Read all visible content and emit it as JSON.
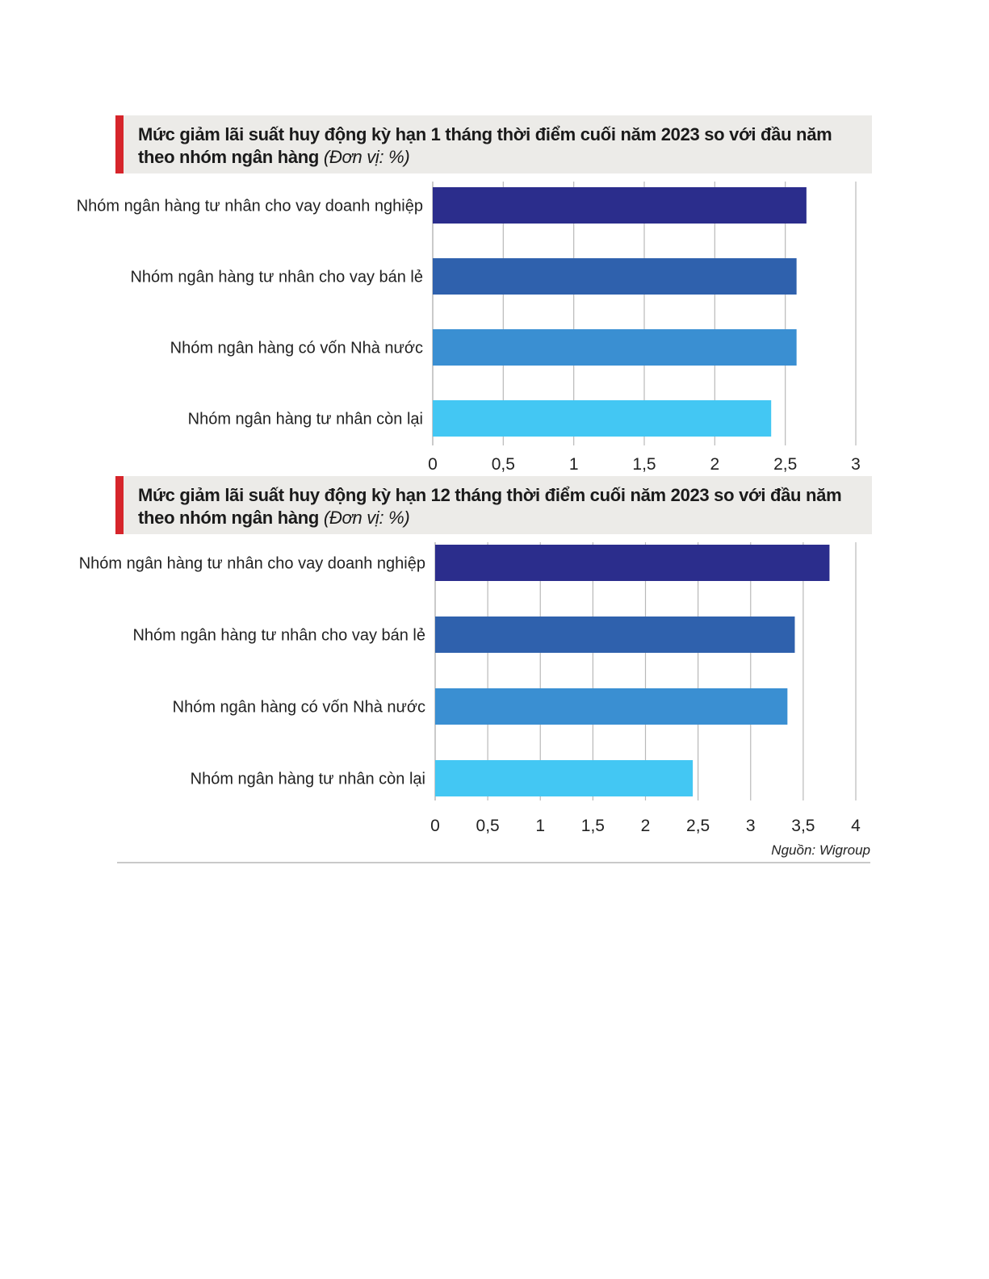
{
  "charts": [
    {
      "title": "Mức giảm lãi suất huy động kỳ hạn 1 tháng thời điểm cuối năm 2023 so với đầu năm theo nhóm ngân hàng",
      "unit": "(Đơn vị: %)"
    },
    {
      "title": "Mức giảm lãi suất huy động kỳ hạn 12 tháng thời điểm cuối năm 2023 so với đầu năm theo nhóm ngân hàng",
      "unit": "(Đơn vị: %)"
    }
  ],
  "source": "Nguồn: Wigroup",
  "colors": {
    "accent": "#d6252b",
    "title_bg": "#ecebe8",
    "bars": [
      "#2b2d8c",
      "#2f61ad",
      "#3a8fd2",
      "#43c7f3"
    ],
    "grid": "#b9b9b9"
  },
  "chart_data": [
    {
      "type": "bar",
      "orientation": "horizontal",
      "categories": [
        "Nhóm ngân hàng tư nhân cho vay doanh nghiệp",
        "Nhóm ngân hàng tư nhân cho vay bán lẻ",
        "Nhóm ngân hàng có vốn Nhà nước",
        "Nhóm ngân hàng tư nhân còn lại"
      ],
      "values": [
        2.65,
        2.58,
        2.58,
        2.4
      ],
      "xlim": [
        0,
        3
      ],
      "ticks": [
        0,
        0.5,
        1,
        1.5,
        2,
        2.5,
        3
      ],
      "tick_labels": [
        "0",
        "0,5",
        "1",
        "1,5",
        "2",
        "2,5",
        "3"
      ],
      "grid": true
    },
    {
      "type": "bar",
      "orientation": "horizontal",
      "categories": [
        "Nhóm ngân hàng tư nhân cho vay doanh nghiệp",
        "Nhóm ngân hàng tư nhân cho vay bán lẻ",
        "Nhóm ngân hàng có vốn Nhà nước",
        "Nhóm ngân hàng tư nhân còn lại"
      ],
      "values": [
        3.75,
        3.42,
        3.35,
        2.45
      ],
      "xlim": [
        0,
        4
      ],
      "ticks": [
        0,
        0.5,
        1,
        1.5,
        2,
        2.5,
        3,
        3.5,
        4
      ],
      "tick_labels": [
        "0",
        "0,5",
        "1",
        "1,5",
        "2",
        "2,5",
        "3",
        "3,5",
        "4"
      ],
      "grid": true
    }
  ]
}
